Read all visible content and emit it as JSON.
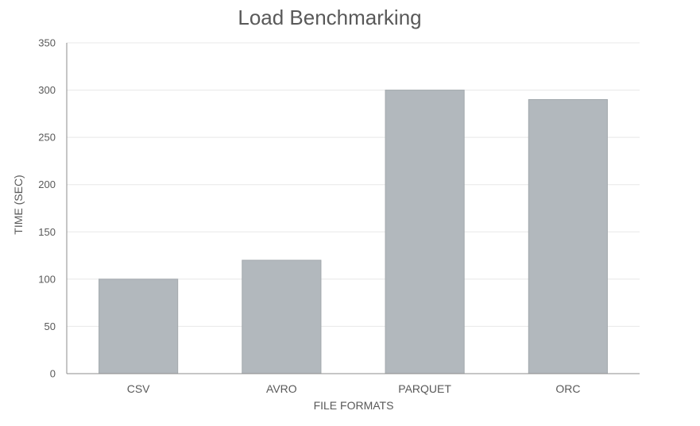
{
  "chart_data": {
    "type": "bar",
    "title": "Load Benchmarking",
    "xlabel": "FILE FORMATS",
    "ylabel": "TIME (SEC)",
    "categories": [
      "CSV",
      "AVRO",
      "PARQUET",
      "ORC"
    ],
    "series": [
      {
        "values": [
          100,
          120,
          300,
          290
        ]
      }
    ],
    "ylim": [
      0,
      350
    ],
    "yticks": [
      0,
      50,
      100,
      150,
      200,
      250,
      300,
      350
    ],
    "grid": true,
    "legend": "none"
  },
  "colors": {
    "bar_fill": "#b2b8bd",
    "bar_stroke": "#a3a9ae",
    "gridline": "#e8e8e8",
    "axis_line": "#8c8c8c",
    "text": "#595959"
  }
}
